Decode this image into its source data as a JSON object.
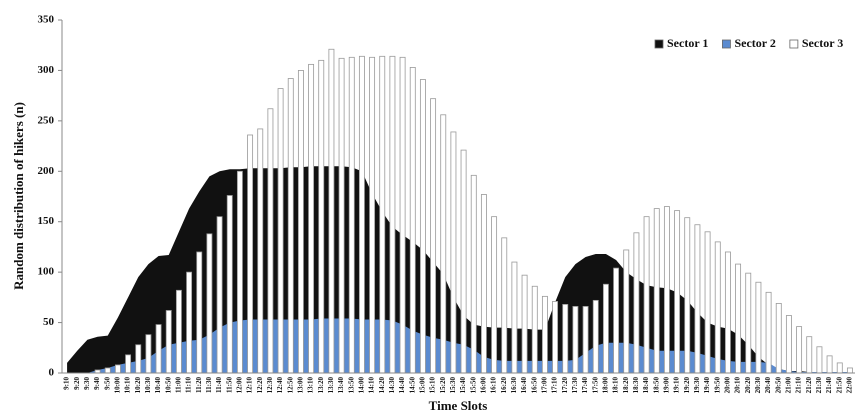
{
  "chart_data": {
    "type": "combo",
    "x_label": "Time Slots",
    "y_label": "Random distribution of hikers (n)",
    "categories": [
      "9:10",
      "9:20",
      "9:30",
      "9:40",
      "9:50",
      "10:00",
      "10:10",
      "10:20",
      "10:30",
      "10:40",
      "10:50",
      "11:00",
      "11:10",
      "11:20",
      "11:30",
      "11:40",
      "11:50",
      "12:00",
      "12:10",
      "12:20",
      "12:30",
      "12:40",
      "12:50",
      "13:00",
      "13:10",
      "13:20",
      "13:30",
      "13:40",
      "13:50",
      "14:00",
      "14:10",
      "14:20",
      "14:30",
      "14:40",
      "14:50",
      "15:00",
      "15:10",
      "15:20",
      "15:30",
      "15:40",
      "15:50",
      "16:00",
      "16:10",
      "16:20",
      "16:30",
      "16:40",
      "16:50",
      "17:00",
      "17:10",
      "17:20",
      "17:30",
      "17:40",
      "17:50",
      "18:00",
      "18:10",
      "18:20",
      "18:30",
      "18:40",
      "18:50",
      "19:00",
      "19:10",
      "19:20",
      "19:30",
      "19:40",
      "19:50",
      "20:00",
      "20:10",
      "20:20",
      "20:30",
      "20:40",
      "20:50",
      "21:00",
      "21:10",
      "21:20",
      "21:30",
      "21:40",
      "21:50",
      "22:00"
    ],
    "series": [
      {
        "name": "Sector 1",
        "type": "area",
        "color": "#111111",
        "values": [
          10,
          22,
          33,
          36,
          37,
          55,
          75,
          95,
          108,
          116,
          117,
          140,
          163,
          180,
          195,
          200,
          202,
          202,
          203,
          203,
          203,
          203,
          204,
          204,
          205,
          205,
          205,
          205,
          204,
          200,
          178,
          160,
          145,
          137,
          130,
          122,
          110,
          98,
          75,
          57,
          48,
          46,
          45,
          45,
          44,
          44,
          43,
          43,
          70,
          95,
          108,
          115,
          118,
          118,
          112,
          100,
          93,
          87,
          85,
          84,
          80,
          72,
          60,
          50,
          46,
          44,
          38,
          28,
          16,
          8,
          4,
          2,
          2,
          1,
          1,
          1,
          1,
          1
        ]
      },
      {
        "name": "Sector 2",
        "type": "area",
        "color": "#5b8bd0",
        "values": [
          0,
          0,
          0,
          3,
          5,
          8,
          10,
          12,
          15,
          22,
          28,
          30,
          32,
          33,
          38,
          45,
          50,
          52,
          53,
          53,
          53,
          53,
          53,
          53,
          53,
          54,
          54,
          54,
          54,
          53,
          53,
          53,
          52,
          48,
          42,
          38,
          35,
          33,
          30,
          28,
          23,
          16,
          13,
          12,
          12,
          12,
          12,
          12,
          12,
          12,
          13,
          20,
          27,
          30,
          30,
          30,
          28,
          25,
          22,
          22,
          22,
          22,
          20,
          17,
          14,
          12,
          11,
          11,
          11,
          10,
          4,
          2,
          1,
          1,
          1,
          1,
          1,
          1
        ]
      },
      {
        "name": "Sector 3",
        "type": "bar",
        "color": "#ffffff",
        "values": [
          0,
          0,
          0,
          3,
          5,
          8,
          18,
          28,
          38,
          48,
          62,
          82,
          100,
          120,
          138,
          155,
          176,
          200,
          236,
          242,
          262,
          282,
          292,
          300,
          306,
          310,
          321,
          312,
          313,
          314,
          313,
          314,
          314,
          313,
          303,
          291,
          272,
          256,
          239,
          221,
          196,
          177,
          155,
          134,
          110,
          97,
          86,
          76,
          71,
          68,
          66,
          66,
          72,
          88,
          104,
          122,
          139,
          155,
          163,
          165,
          161,
          154,
          147,
          140,
          130,
          120,
          108,
          99,
          90,
          80,
          69,
          57,
          46,
          36,
          26,
          17,
          10,
          5
        ]
      }
    ],
    "ylim": [
      0,
      350
    ],
    "yticks": [
      0,
      50,
      100,
      150,
      200,
      250,
      300,
      350
    ],
    "grid": false,
    "legend": "upper right"
  }
}
